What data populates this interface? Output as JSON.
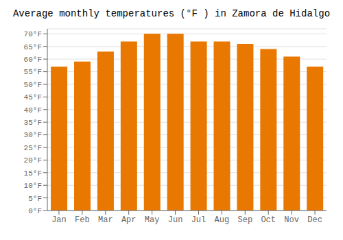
{
  "chart_data": {
    "type": "bar",
    "title": "Average monthly temperatures (°F ) in Zamora de Hidalgo",
    "categories": [
      "Jan",
      "Feb",
      "Mar",
      "Apr",
      "May",
      "Jun",
      "Jul",
      "Aug",
      "Sep",
      "Oct",
      "Nov",
      "Dec"
    ],
    "values": [
      57,
      59,
      63,
      67,
      70,
      70,
      67,
      67,
      66,
      64,
      61,
      57
    ],
    "color": "#E87800",
    "ylim": [
      0,
      72
    ],
    "yticks": [
      {
        "value": 0,
        "label": "0°F"
      },
      {
        "value": 5,
        "label": "5°F"
      },
      {
        "value": 10,
        "label": "10°F"
      },
      {
        "value": 15,
        "label": "15°F"
      },
      {
        "value": 20,
        "label": "20°F"
      },
      {
        "value": 25,
        "label": "25°F"
      },
      {
        "value": 30,
        "label": "30°F"
      },
      {
        "value": 35,
        "label": "35°F"
      },
      {
        "value": 40,
        "label": "40°F"
      },
      {
        "value": 45,
        "label": "45°F"
      },
      {
        "value": 50,
        "label": "50°F"
      },
      {
        "value": 55,
        "label": "55°F"
      },
      {
        "value": 60,
        "label": "60°F"
      },
      {
        "value": 65,
        "label": "65°F"
      },
      {
        "value": 70,
        "label": "70°F"
      }
    ],
    "grid": true
  }
}
